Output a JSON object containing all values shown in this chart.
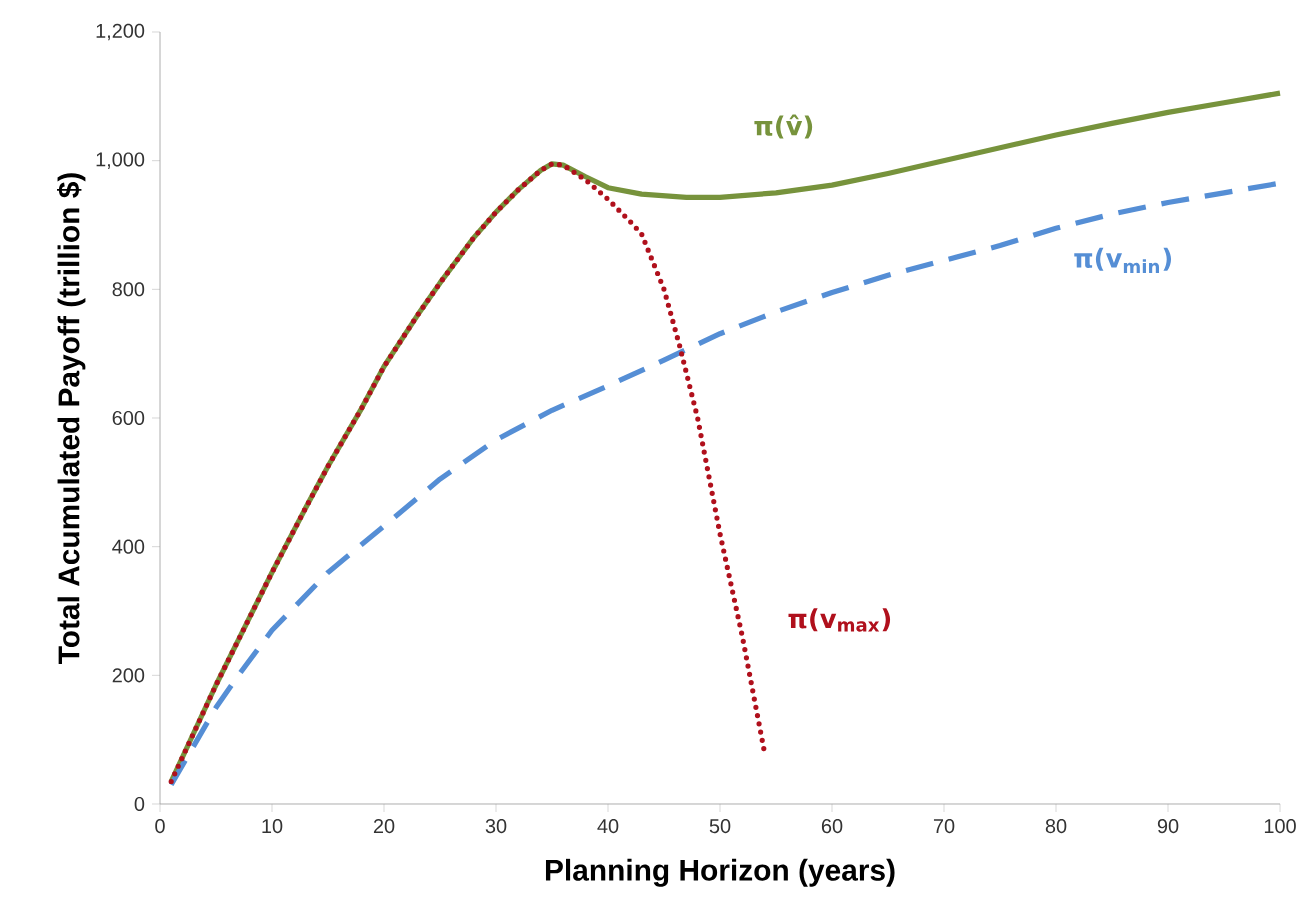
{
  "chart_data": {
    "type": "line",
    "xlabel": "Planning Horizon (years)",
    "ylabel": "Total Acumulated Payoff (trillion $)",
    "xlim": [
      0,
      100
    ],
    "xticks": [
      0,
      10,
      20,
      30,
      40,
      50,
      60,
      70,
      80,
      90,
      100
    ],
    "ylim": [
      0,
      1200
    ],
    "yticks": [
      0,
      200,
      400,
      600,
      800,
      {
        "value": 1000,
        "label": "1,000"
      },
      {
        "value": 1200,
        "label": "1,200"
      }
    ],
    "grid": false,
    "legend": false,
    "marker": "none",
    "series": [
      {
        "name": "π(v̂)",
        "color": "#77933c",
        "line_style": "solid",
        "x": [
          1,
          3,
          5,
          8,
          10,
          13,
          15,
          18,
          20,
          23,
          25,
          28,
          30,
          32,
          34,
          35,
          36,
          38,
          40,
          43,
          47,
          50,
          55,
          60,
          65,
          70,
          75,
          80,
          85,
          90,
          95,
          100
        ],
        "values": [
          35,
          110,
          185,
          290,
          360,
          460,
          525,
          615,
          680,
          760,
          810,
          880,
          920,
          955,
          985,
          995,
          993,
          975,
          958,
          948,
          943,
          943,
          950,
          962,
          980,
          1000,
          1020,
          1040,
          1058,
          1075,
          1090,
          1105
        ]
      },
      {
        "name": "π(v$_{min}$)",
        "color": "#558ed5",
        "line_style": "dashed",
        "x": [
          1,
          3,
          5,
          7,
          10,
          15,
          20,
          25,
          30,
          35,
          40,
          45,
          50,
          55,
          60,
          65,
          70,
          75,
          80,
          85,
          90,
          95,
          100
        ],
        "values": [
          30,
          90,
          150,
          200,
          270,
          360,
          432,
          505,
          566,
          612,
          650,
          690,
          731,
          765,
          795,
          822,
          845,
          868,
          895,
          917,
          935,
          950,
          965
        ]
      },
      {
        "name": "π(v$_{max}$)",
        "color": "#b0101c",
        "line_style": "dotted",
        "x": [
          1,
          3,
          5,
          8,
          10,
          13,
          15,
          18,
          20,
          23,
          25,
          28,
          30,
          32,
          34,
          35,
          36,
          38,
          40,
          42,
          43,
          45,
          46.4,
          48,
          50,
          52,
          54
        ],
        "values": [
          35,
          110,
          185,
          290,
          360,
          460,
          525,
          615,
          680,
          760,
          810,
          880,
          920,
          955,
          985,
          995,
          993,
          970,
          940,
          905,
          886,
          800,
          712,
          600,
          420,
          260,
          78
        ]
      }
    ]
  }
}
